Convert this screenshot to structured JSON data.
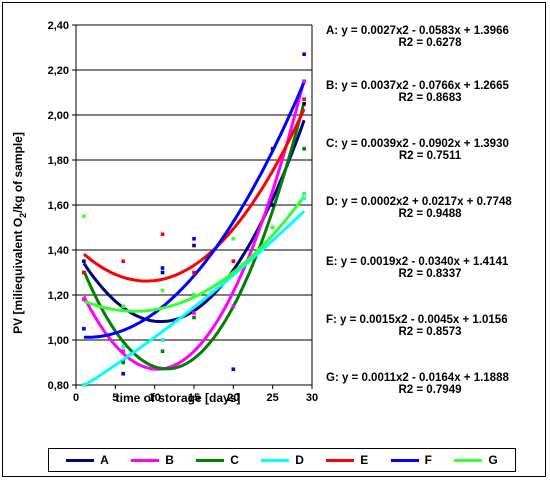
{
  "chart_data": {
    "type": "scatter",
    "xlabel": "time of storage [days]",
    "ylabel": "PV [miliequivalent O2/kg of sample]",
    "ylabel_parts": {
      "pre": "PV [miliequivalent O",
      "sub": "2",
      "post": "/kg of sample]"
    },
    "xlim": [
      0,
      30
    ],
    "ylim": [
      0.8,
      2.4
    ],
    "xticks": [
      "0",
      "5",
      "10",
      "15",
      "20",
      "25",
      "30"
    ],
    "yticks": [
      "0,80",
      "1,00",
      "1,20",
      "1,40",
      "1,60",
      "1,80",
      "2,00",
      "2,20",
      "2,40"
    ],
    "grid": true,
    "legend_position": "bottom",
    "series": [
      {
        "name": "A",
        "color": "#000080",
        "a": 0.0027,
        "b": -0.0583,
        "c": 1.3966,
        "x": [
          1,
          6,
          11,
          15,
          20,
          25,
          29
        ],
        "y": [
          1.35,
          0.95,
          1.3,
          1.42,
          1.35,
          1.6,
          2.05
        ]
      },
      {
        "name": "B",
        "color": "#ff00ff",
        "a": 0.0037,
        "b": -0.0766,
        "c": 1.2665,
        "x": [
          1,
          6,
          11,
          15,
          20,
          25,
          29
        ],
        "y": [
          1.18,
          0.95,
          1.0,
          1.12,
          1.15,
          1.5,
          2.15
        ]
      },
      {
        "name": "C",
        "color": "#008000",
        "a": 0.0039,
        "b": -0.0902,
        "c": 1.393,
        "x": [
          1,
          6,
          11,
          15,
          20,
          25,
          29
        ],
        "y": [
          1.3,
          0.9,
          0.95,
          1.1,
          1.35,
          1.5,
          1.85
        ]
      },
      {
        "name": "D",
        "color": "#00ffff",
        "a": 0.0002,
        "b": 0.0217,
        "c": 0.7748,
        "x": [
          1,
          6,
          11,
          15,
          20,
          25,
          29
        ],
        "y": [
          0.8,
          0.97,
          1.0,
          1.2,
          1.35,
          1.5,
          1.63
        ]
      },
      {
        "name": "E",
        "color": "#ff0000",
        "a": 0.0019,
        "b": -0.034,
        "c": 1.4141,
        "x": [
          1,
          6,
          11,
          15,
          20,
          25,
          29
        ],
        "y": [
          1.3,
          1.35,
          1.47,
          1.3,
          1.35,
          1.85,
          2.07
        ]
      },
      {
        "name": "F",
        "color": "#0000ff",
        "a": 0.0015,
        "b": -0.0045,
        "c": 1.0156,
        "x": [
          1,
          6,
          11,
          15,
          20,
          25,
          29
        ],
        "y": [
          1.05,
          0.85,
          1.32,
          1.45,
          0.87,
          1.85,
          2.27
        ]
      },
      {
        "name": "G",
        "color": "#33ff33",
        "a": 0.0011,
        "b": -0.0164,
        "c": 1.1888,
        "x": [
          1,
          6,
          11,
          15,
          20,
          25,
          29
        ],
        "y": [
          1.55,
          1.15,
          1.22,
          1.2,
          1.45,
          1.5,
          1.65
        ]
      }
    ],
    "annotations": [
      {
        "eq": "A: y = 0.0027x2 - 0.0583x + 1.3966",
        "r2": "R2 = 0.6278"
      },
      {
        "eq": "B: y = 0.0037x2 - 0.0766x + 1.2665",
        "r2": "R2 = 0.8683"
      },
      {
        "eq": "C: y = 0.0039x2 - 0.0902x + 1.3930",
        "r2": "R2 = 0.7511"
      },
      {
        "eq": "D: y = 0.0002x2 + 0.0217x + 0.7748",
        "r2": "R2 = 0.9488"
      },
      {
        "eq": "E: y = 0.0019x2 - 0.0340x + 1.4141",
        "r2": "R2 = 0.8337"
      },
      {
        "eq": "F: y = 0.0015x2 - 0.0045x + 1.0156",
        "r2": "R2 = 0.8573"
      },
      {
        "eq": "G: y = 0.0011x2 - 0.0164x + 1.1888",
        "r2": "R2 = 0.7949"
      }
    ]
  }
}
